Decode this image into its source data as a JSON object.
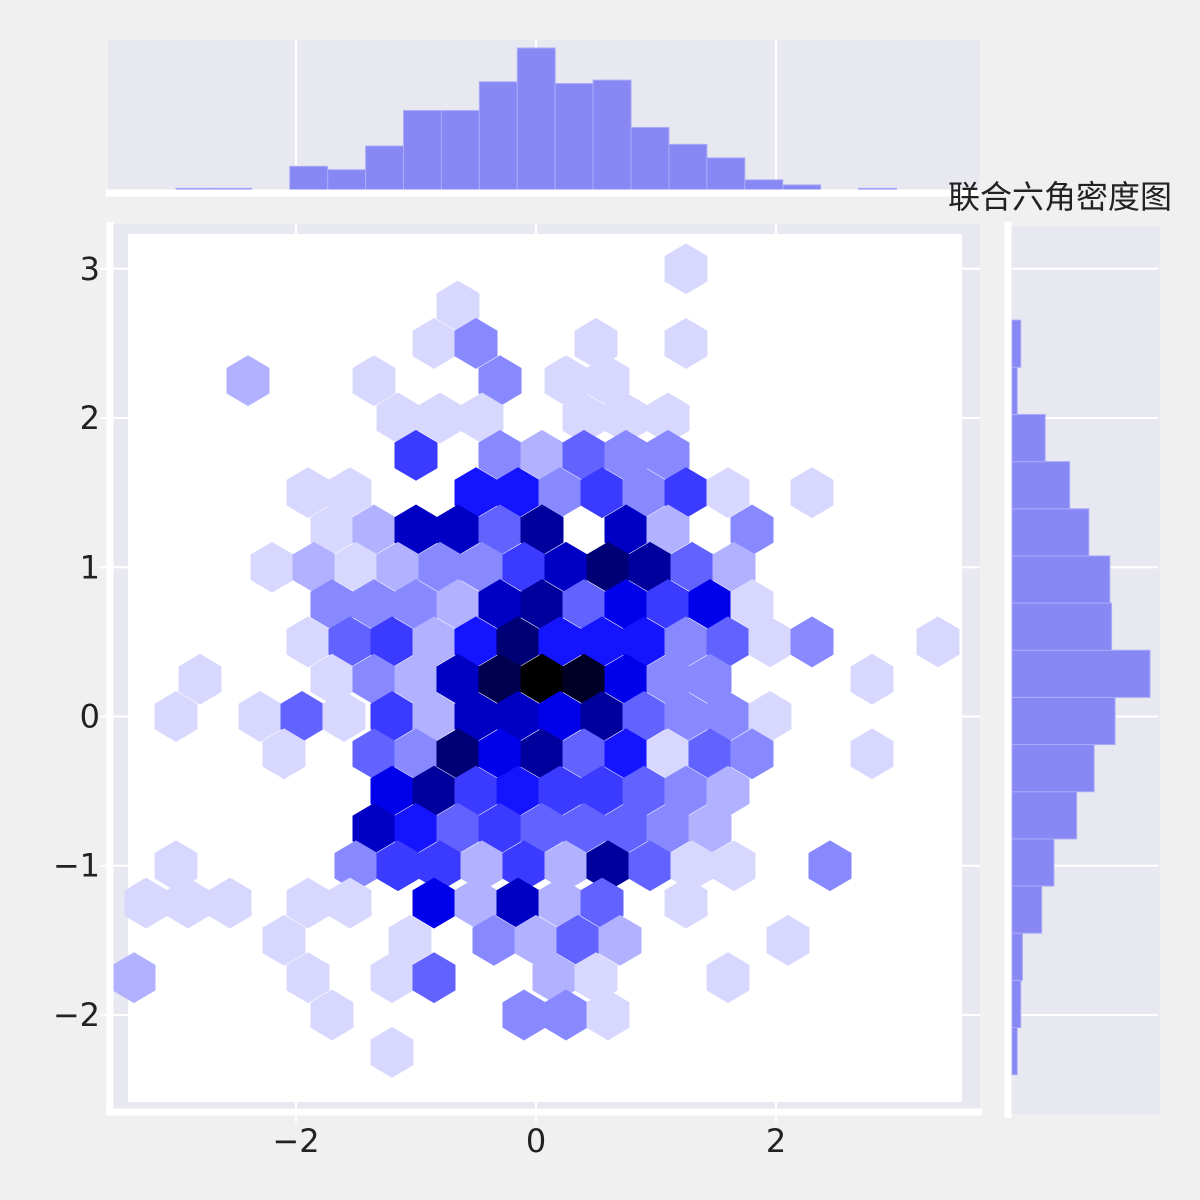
{
  "chart_data": {
    "type": "hexbin",
    "title": "联合六角密度图",
    "x_range": [
      -3.55,
      3.7
    ],
    "y_range": [
      -2.65,
      3.3
    ],
    "xticks": [
      -2,
      0,
      2
    ],
    "xtick_labels": [
      "−2",
      "0",
      "2"
    ],
    "yticks": [
      -2,
      -1,
      0,
      1,
      2,
      3
    ],
    "ytick_labels": [
      "−2",
      "−1",
      "0",
      "1",
      "2",
      "3"
    ],
    "grid": true,
    "colors": {
      "background": "#f0f0f0",
      "axes_face": "#e8e8f0",
      "grid": "#ffffff",
      "hex_low": "#ffffff",
      "hex_mid": "#0000ff",
      "hex_high": "#000000",
      "hist_fill": "#8888f4",
      "hist_edge": "#aaaaf8"
    },
    "max_count": 13,
    "hexbin": {
      "x_spacing": 0.35,
      "y_spacing": 0.25,
      "cells": [
        [
          1.25,
          3.0,
          1
        ],
        [
          -0.65,
          2.75,
          1
        ],
        [
          -0.85,
          2.5,
          1
        ],
        [
          -0.5,
          2.5,
          3
        ],
        [
          0.5,
          2.5,
          1
        ],
        [
          1.25,
          2.5,
          1
        ],
        [
          -2.4,
          2.25,
          2
        ],
        [
          -1.35,
          2.25,
          1
        ],
        [
          -0.3,
          2.25,
          3
        ],
        [
          0.25,
          2.25,
          1
        ],
        [
          0.6,
          2.25,
          1
        ],
        [
          -1.15,
          2.0,
          1
        ],
        [
          -0.8,
          2.0,
          1
        ],
        [
          -0.45,
          2.0,
          1
        ],
        [
          0.4,
          2.0,
          1
        ],
        [
          0.75,
          2.0,
          1
        ],
        [
          1.1,
          2.0,
          1
        ],
        [
          -1.0,
          1.75,
          5
        ],
        [
          -0.3,
          1.75,
          3
        ],
        [
          0.05,
          1.75,
          2
        ],
        [
          0.4,
          1.75,
          4
        ],
        [
          0.75,
          1.75,
          3
        ],
        [
          1.1,
          1.75,
          3
        ],
        [
          -1.9,
          1.5,
          1
        ],
        [
          -1.55,
          1.5,
          1
        ],
        [
          -0.5,
          1.5,
          6
        ],
        [
          -0.15,
          1.5,
          6
        ],
        [
          0.2,
          1.5,
          3
        ],
        [
          0.55,
          1.5,
          5
        ],
        [
          0.9,
          1.5,
          3
        ],
        [
          1.25,
          1.5,
          5
        ],
        [
          1.6,
          1.5,
          1
        ],
        [
          2.3,
          1.5,
          1
        ],
        [
          -1.7,
          1.25,
          1
        ],
        [
          -1.35,
          1.25,
          2
        ],
        [
          -1.0,
          1.25,
          8
        ],
        [
          -0.65,
          1.25,
          8
        ],
        [
          -0.3,
          1.25,
          4
        ],
        [
          0.05,
          1.25,
          9
        ],
        [
          0.75,
          1.25,
          8
        ],
        [
          1.1,
          1.25,
          2
        ],
        [
          1.8,
          1.25,
          3
        ],
        [
          -2.2,
          1.0,
          1
        ],
        [
          -1.85,
          1.0,
          2
        ],
        [
          -1.5,
          1.0,
          1
        ],
        [
          -1.15,
          1.0,
          2
        ],
        [
          -0.8,
          1.0,
          3
        ],
        [
          -0.45,
          1.0,
          3
        ],
        [
          -0.1,
          1.0,
          5
        ],
        [
          0.25,
          1.0,
          8
        ],
        [
          0.6,
          1.0,
          10
        ],
        [
          0.95,
          1.0,
          9
        ],
        [
          1.3,
          1.0,
          4
        ],
        [
          1.65,
          1.0,
          2
        ],
        [
          -1.7,
          0.75,
          3
        ],
        [
          -1.35,
          0.75,
          3
        ],
        [
          -1.0,
          0.75,
          3
        ],
        [
          -0.65,
          0.75,
          2
        ],
        [
          -0.3,
          0.75,
          8
        ],
        [
          0.05,
          0.75,
          9
        ],
        [
          0.4,
          0.75,
          4
        ],
        [
          0.75,
          0.75,
          7
        ],
        [
          1.1,
          0.75,
          5
        ],
        [
          1.45,
          0.75,
          7
        ],
        [
          1.8,
          0.75,
          1
        ],
        [
          -1.9,
          0.5,
          1
        ],
        [
          -1.55,
          0.5,
          4
        ],
        [
          -1.2,
          0.5,
          5
        ],
        [
          -0.85,
          0.5,
          2
        ],
        [
          -0.5,
          0.5,
          6
        ],
        [
          -0.15,
          0.5,
          10
        ],
        [
          0.2,
          0.5,
          6
        ],
        [
          0.55,
          0.5,
          6
        ],
        [
          0.9,
          0.5,
          6
        ],
        [
          1.25,
          0.5,
          3
        ],
        [
          1.6,
          0.5,
          4
        ],
        [
          1.95,
          0.5,
          1
        ],
        [
          2.3,
          0.5,
          3
        ],
        [
          3.35,
          0.5,
          1
        ],
        [
          -2.8,
          0.25,
          1
        ],
        [
          -1.7,
          0.25,
          1
        ],
        [
          -1.35,
          0.25,
          3
        ],
        [
          -1.0,
          0.25,
          2
        ],
        [
          -0.65,
          0.25,
          8
        ],
        [
          -0.3,
          0.25,
          11
        ],
        [
          0.05,
          0.25,
          13
        ],
        [
          0.4,
          0.25,
          12
        ],
        [
          0.75,
          0.25,
          7
        ],
        [
          1.1,
          0.25,
          3
        ],
        [
          1.45,
          0.25,
          3
        ],
        [
          2.8,
          0.25,
          1
        ],
        [
          -3.0,
          0.0,
          1
        ],
        [
          -2.3,
          0.0,
          1
        ],
        [
          -1.95,
          0.0,
          4
        ],
        [
          -1.6,
          0.0,
          1
        ],
        [
          -1.2,
          0.0,
          5
        ],
        [
          -0.85,
          0.0,
          2
        ],
        [
          -0.5,
          0.0,
          8
        ],
        [
          -0.15,
          0.0,
          8
        ],
        [
          0.2,
          0.0,
          7
        ],
        [
          0.55,
          0.0,
          9
        ],
        [
          0.9,
          0.0,
          4
        ],
        [
          1.25,
          0.0,
          3
        ],
        [
          1.6,
          0.0,
          3
        ],
        [
          1.95,
          0.0,
          1
        ],
        [
          -2.1,
          -0.25,
          1
        ],
        [
          -1.35,
          -0.25,
          4
        ],
        [
          -1.0,
          -0.25,
          3
        ],
        [
          -0.65,
          -0.25,
          10
        ],
        [
          -0.3,
          -0.25,
          7
        ],
        [
          0.05,
          -0.25,
          9
        ],
        [
          0.4,
          -0.25,
          4
        ],
        [
          0.75,
          -0.25,
          6
        ],
        [
          1.1,
          -0.25,
          1
        ],
        [
          1.45,
          -0.25,
          4
        ],
        [
          1.8,
          -0.25,
          3
        ],
        [
          2.8,
          -0.25,
          1
        ],
        [
          -1.2,
          -0.5,
          7
        ],
        [
          -0.85,
          -0.5,
          9
        ],
        [
          -0.5,
          -0.5,
          5
        ],
        [
          -0.15,
          -0.5,
          6
        ],
        [
          0.2,
          -0.5,
          5
        ],
        [
          0.55,
          -0.5,
          5
        ],
        [
          0.9,
          -0.5,
          4
        ],
        [
          1.25,
          -0.5,
          3
        ],
        [
          1.6,
          -0.5,
          2
        ],
        [
          -1.35,
          -0.75,
          8
        ],
        [
          -1.0,
          -0.75,
          6
        ],
        [
          -0.65,
          -0.75,
          4
        ],
        [
          -0.3,
          -0.75,
          5
        ],
        [
          0.05,
          -0.75,
          4
        ],
        [
          0.4,
          -0.75,
          4
        ],
        [
          0.75,
          -0.75,
          4
        ],
        [
          1.1,
          -0.75,
          3
        ],
        [
          1.45,
          -0.75,
          2
        ],
        [
          -3.0,
          -1.0,
          1
        ],
        [
          -1.5,
          -1.0,
          3
        ],
        [
          -1.15,
          -1.0,
          5
        ],
        [
          -0.8,
          -1.0,
          5
        ],
        [
          -0.45,
          -1.0,
          2
        ],
        [
          -0.1,
          -1.0,
          5
        ],
        [
          0.25,
          -1.0,
          2
        ],
        [
          0.6,
          -1.0,
          9
        ],
        [
          0.95,
          -1.0,
          4
        ],
        [
          1.3,
          -1.0,
          1
        ],
        [
          1.65,
          -1.0,
          1
        ],
        [
          2.45,
          -1.0,
          3
        ],
        [
          -3.25,
          -1.25,
          1
        ],
        [
          -2.9,
          -1.25,
          1
        ],
        [
          -2.55,
          -1.25,
          1
        ],
        [
          -1.9,
          -1.25,
          1
        ],
        [
          -1.55,
          -1.25,
          1
        ],
        [
          -0.85,
          -1.25,
          7
        ],
        [
          -0.5,
          -1.25,
          2
        ],
        [
          -0.15,
          -1.25,
          8
        ],
        [
          0.2,
          -1.25,
          2
        ],
        [
          0.55,
          -1.25,
          4
        ],
        [
          1.25,
          -1.25,
          1
        ],
        [
          -2.1,
          -1.5,
          1
        ],
        [
          -1.05,
          -1.5,
          1
        ],
        [
          -0.35,
          -1.5,
          3
        ],
        [
          0.0,
          -1.5,
          2
        ],
        [
          0.35,
          -1.5,
          4
        ],
        [
          0.7,
          -1.5,
          2
        ],
        [
          2.1,
          -1.5,
          1
        ],
        [
          -3.35,
          -1.75,
          2
        ],
        [
          -1.9,
          -1.75,
          1
        ],
        [
          -1.2,
          -1.75,
          1
        ],
        [
          -0.85,
          -1.75,
          4
        ],
        [
          0.15,
          -1.75,
          2
        ],
        [
          0.5,
          -1.75,
          1
        ],
        [
          1.6,
          -1.75,
          1
        ],
        [
          -1.7,
          -2.0,
          1
        ],
        [
          -0.1,
          -2.0,
          3
        ],
        [
          0.25,
          -2.0,
          3
        ],
        [
          0.6,
          -2.0,
          1
        ],
        [
          -1.2,
          -2.25,
          1
        ]
      ]
    },
    "x_hist": {
      "edges": [
        -3.0,
        -2.684,
        -2.368,
        -2.052,
        -1.736,
        -1.42,
        -1.104,
        -0.788,
        -0.472,
        -0.156,
        0.16,
        0.476,
        0.792,
        1.108,
        1.424,
        1.74,
        2.056,
        2.372,
        2.688,
        3.004
      ],
      "counts": [
        1,
        1,
        0,
        14,
        12,
        26,
        47,
        47,
        64,
        84,
        63,
        65,
        37,
        27,
        19,
        6,
        3,
        0,
        1
      ]
    },
    "y_hist": {
      "edges": [
        -2.4,
        -2.084,
        -1.768,
        -1.452,
        -1.136,
        -0.82,
        -0.504,
        -0.188,
        0.128,
        0.444,
        0.76,
        1.076,
        1.392,
        1.708,
        2.024,
        2.34,
        2.656
      ],
      "counts": [
        3,
        5,
        6,
        17,
        24,
        37,
        47,
        59,
        79,
        57,
        56,
        44,
        33,
        19,
        3,
        5
      ]
    }
  }
}
